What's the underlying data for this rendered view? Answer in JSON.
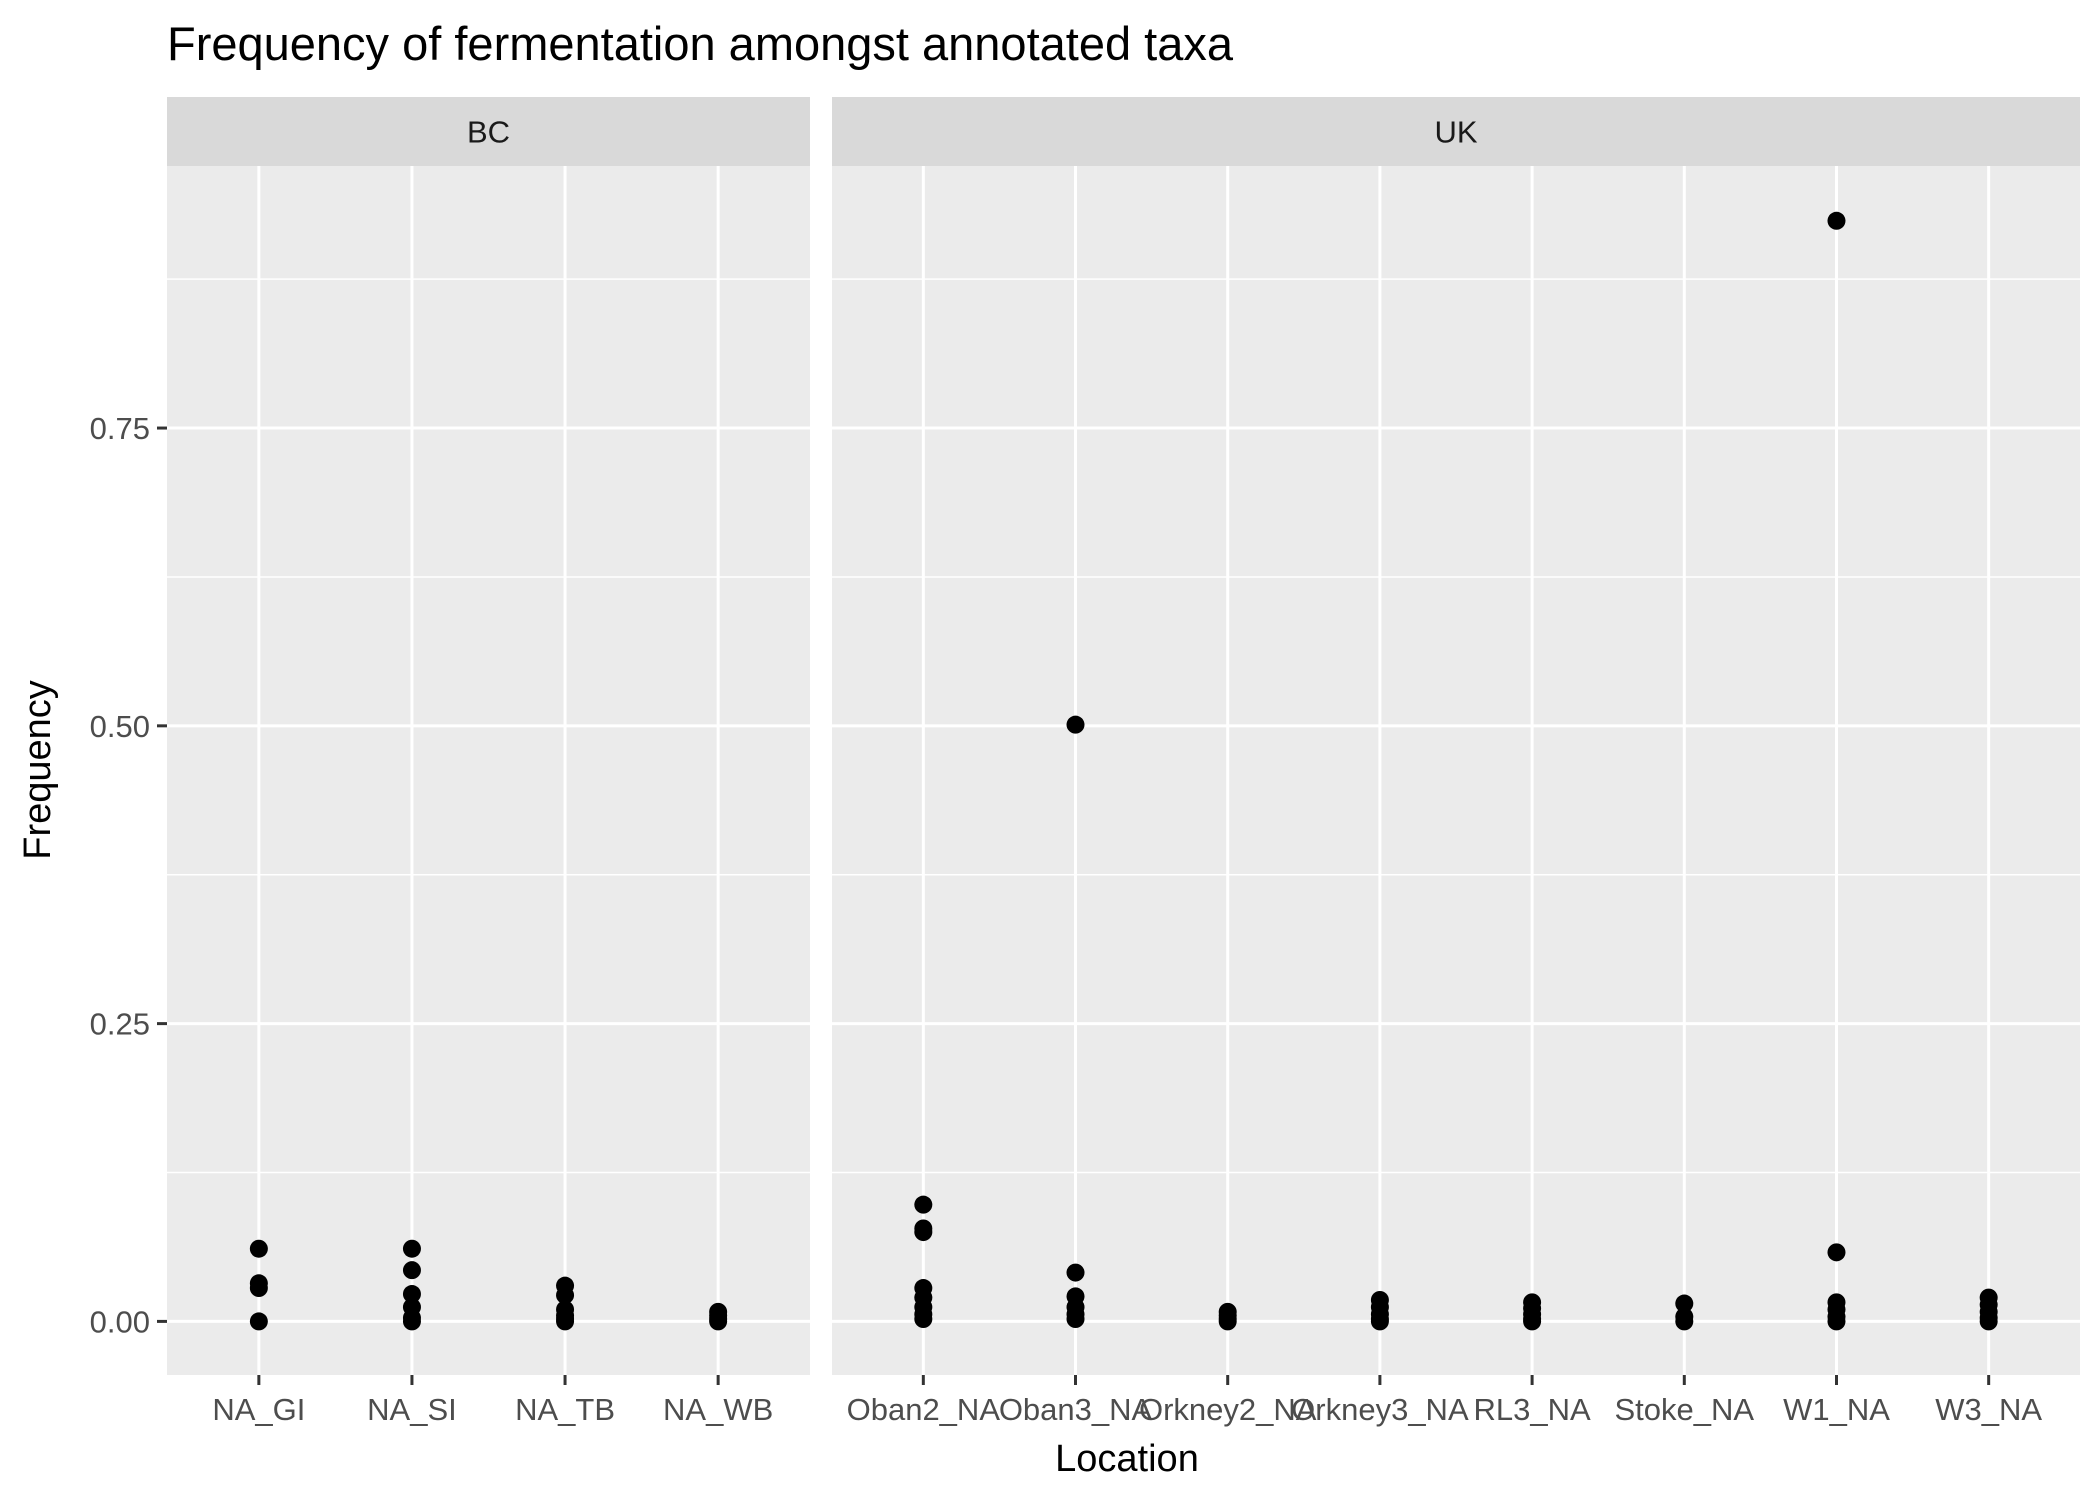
{
  "chart_data": {
    "type": "scatter",
    "title": "Frequency of fermentation amongst annotated taxa",
    "xlabel": "Location",
    "ylabel": "Frequency",
    "ylim": [
      -0.045,
      0.97
    ],
    "yticks": [
      0.0,
      0.25,
      0.5,
      0.75
    ],
    "ytick_labels": [
      "0.00",
      "0.25",
      "0.50",
      "0.75"
    ],
    "grid": true,
    "point_color": "#000000",
    "panel_bg": "#ebebeb",
    "strip_bg": "#d9d9d9",
    "facets": [
      {
        "name": "BC",
        "categories": [
          "NA_GI",
          "NA_SI",
          "NA_TB",
          "NA_WB"
        ],
        "points": [
          {
            "x": "NA_GI",
            "y": 0.061
          },
          {
            "x": "NA_GI",
            "y": 0.032
          },
          {
            "x": "NA_GI",
            "y": 0.028
          },
          {
            "x": "NA_GI",
            "y": 0.0
          },
          {
            "x": "NA_SI",
            "y": 0.061
          },
          {
            "x": "NA_SI",
            "y": 0.043
          },
          {
            "x": "NA_SI",
            "y": 0.023
          },
          {
            "x": "NA_SI",
            "y": 0.012
          },
          {
            "x": "NA_SI",
            "y": 0.003
          },
          {
            "x": "NA_SI",
            "y": 0.0
          },
          {
            "x": "NA_TB",
            "y": 0.03
          },
          {
            "x": "NA_TB",
            "y": 0.022
          },
          {
            "x": "NA_TB",
            "y": 0.01
          },
          {
            "x": "NA_TB",
            "y": 0.005
          },
          {
            "x": "NA_TB",
            "y": 0.002
          },
          {
            "x": "NA_TB",
            "y": 0.0
          },
          {
            "x": "NA_WB",
            "y": 0.008
          },
          {
            "x": "NA_WB",
            "y": 0.005
          },
          {
            "x": "NA_WB",
            "y": 0.002
          },
          {
            "x": "NA_WB",
            "y": 0.0
          }
        ]
      },
      {
        "name": "UK",
        "categories": [
          "Oban2_NA",
          "Oban3_NA",
          "Orkney2_NA",
          "Orkney3_NA",
          "RL3_NA",
          "Stoke_NA",
          "W1_NA",
          "W3_NA"
        ],
        "points": [
          {
            "x": "Oban2_NA",
            "y": 0.098
          },
          {
            "x": "Oban2_NA",
            "y": 0.078
          },
          {
            "x": "Oban2_NA",
            "y": 0.075
          },
          {
            "x": "Oban2_NA",
            "y": 0.028
          },
          {
            "x": "Oban2_NA",
            "y": 0.02
          },
          {
            "x": "Oban2_NA",
            "y": 0.012
          },
          {
            "x": "Oban2_NA",
            "y": 0.006
          },
          {
            "x": "Oban2_NA",
            "y": 0.002
          },
          {
            "x": "Oban3_NA",
            "y": 0.501
          },
          {
            "x": "Oban3_NA",
            "y": 0.041
          },
          {
            "x": "Oban3_NA",
            "y": 0.021
          },
          {
            "x": "Oban3_NA",
            "y": 0.012
          },
          {
            "x": "Oban3_NA",
            "y": 0.006
          },
          {
            "x": "Oban3_NA",
            "y": 0.002
          },
          {
            "x": "Orkney2_NA",
            "y": 0.008
          },
          {
            "x": "Orkney2_NA",
            "y": 0.005
          },
          {
            "x": "Orkney2_NA",
            "y": 0.002
          },
          {
            "x": "Orkney2_NA",
            "y": 0.0
          },
          {
            "x": "Orkney3_NA",
            "y": 0.018
          },
          {
            "x": "Orkney3_NA",
            "y": 0.012
          },
          {
            "x": "Orkney3_NA",
            "y": 0.006
          },
          {
            "x": "Orkney3_NA",
            "y": 0.002
          },
          {
            "x": "Orkney3_NA",
            "y": 0.0
          },
          {
            "x": "RL3_NA",
            "y": 0.016
          },
          {
            "x": "RL3_NA",
            "y": 0.011
          },
          {
            "x": "RL3_NA",
            "y": 0.006
          },
          {
            "x": "RL3_NA",
            "y": 0.002
          },
          {
            "x": "RL3_NA",
            "y": 0.0
          },
          {
            "x": "Stoke_NA",
            "y": 0.015
          },
          {
            "x": "Stoke_NA",
            "y": 0.004
          },
          {
            "x": "Stoke_NA",
            "y": 0.0
          },
          {
            "x": "W1_NA",
            "y": 0.924
          },
          {
            "x": "W1_NA",
            "y": 0.058
          },
          {
            "x": "W1_NA",
            "y": 0.016
          },
          {
            "x": "W1_NA",
            "y": 0.01
          },
          {
            "x": "W1_NA",
            "y": 0.004
          },
          {
            "x": "W1_NA",
            "y": 0.0
          },
          {
            "x": "W3_NA",
            "y": 0.02
          },
          {
            "x": "W3_NA",
            "y": 0.014
          },
          {
            "x": "W3_NA",
            "y": 0.008
          },
          {
            "x": "W3_NA",
            "y": 0.003
          },
          {
            "x": "W3_NA",
            "y": 0.0
          }
        ]
      }
    ]
  }
}
